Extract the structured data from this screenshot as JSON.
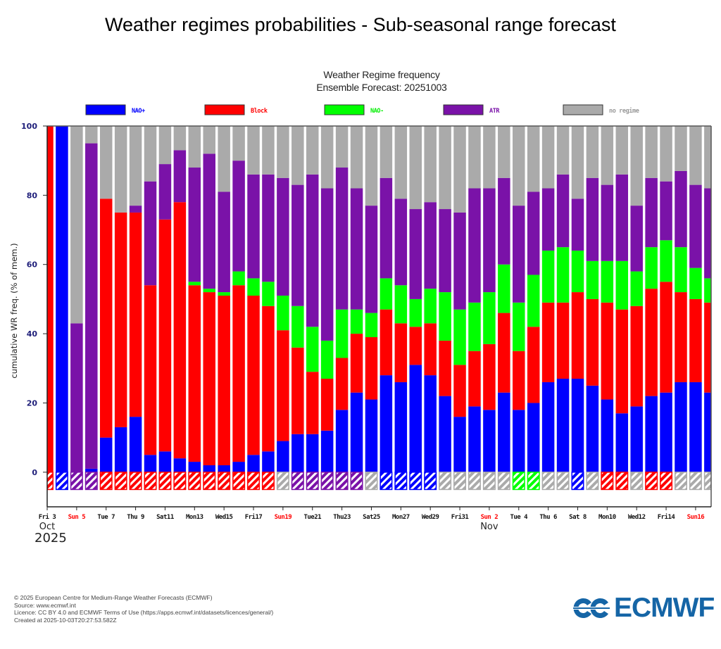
{
  "page": {
    "title": "Weather regimes probabilities - Sub-seasonal range forecast"
  },
  "footer": {
    "copyright": "© 2025 European Centre for Medium-Range Weather Forecasts (ECMWF)",
    "source": "Source: www.ecmwf.int",
    "licence": "Licence: CC BY 4.0 and ECMWF Terms of Use (https://apps.ecmwf.int/datasets/licences/general/)",
    "created": "Created at 2025-10-03T20:27:53.582Z",
    "logo_text": "ECMWF",
    "logo_color": "#1565a6"
  },
  "chart_data": {
    "type": "bar",
    "stacked": true,
    "title": "Weather Regime frequency",
    "subtitle": "Ensemble Forecast: 20251003",
    "xlabel": "",
    "ylabel": "cumulative WR freq. (% of mem.)",
    "ylim": [
      -10,
      100
    ],
    "yticks": [
      0,
      20,
      40,
      60,
      80,
      100
    ],
    "grid": false,
    "legend_position": "top",
    "x_month_labels": [
      {
        "after_day_index": 0,
        "label": "Oct",
        "year": "2025"
      },
      {
        "after_day_index": 30,
        "label": "Nov"
      }
    ],
    "x_tick_labels": [
      {
        "day_index": 0,
        "label": "Fri 3",
        "weekend": false
      },
      {
        "day_index": 2,
        "label": "Sun 5",
        "weekend": true
      },
      {
        "day_index": 4,
        "label": "Tue 7",
        "weekend": false
      },
      {
        "day_index": 6,
        "label": "Thu 9",
        "weekend": false
      },
      {
        "day_index": 8,
        "label": "Sat11",
        "weekend": false
      },
      {
        "day_index": 10,
        "label": "Mon13",
        "weekend": false
      },
      {
        "day_index": 12,
        "label": "Wed15",
        "weekend": false
      },
      {
        "day_index": 14,
        "label": "Fri17",
        "weekend": false
      },
      {
        "day_index": 16,
        "label": "Sun19",
        "weekend": true
      },
      {
        "day_index": 18,
        "label": "Tue21",
        "weekend": false
      },
      {
        "day_index": 20,
        "label": "Thu23",
        "weekend": false
      },
      {
        "day_index": 22,
        "label": "Sat25",
        "weekend": false
      },
      {
        "day_index": 24,
        "label": "Mon27",
        "weekend": false
      },
      {
        "day_index": 26,
        "label": "Wed29",
        "weekend": false
      },
      {
        "day_index": 28,
        "label": "Fri31",
        "weekend": false
      },
      {
        "day_index": 30,
        "label": "Sun 2",
        "weekend": true
      },
      {
        "day_index": 32,
        "label": "Tue 4",
        "weekend": false
      },
      {
        "day_index": 34,
        "label": "Thu 6",
        "weekend": false
      },
      {
        "day_index": 36,
        "label": "Sat 8",
        "weekend": false
      },
      {
        "day_index": 38,
        "label": "Mon10",
        "weekend": false
      },
      {
        "day_index": 40,
        "label": "Wed12",
        "weekend": false
      },
      {
        "day_index": 42,
        "label": "Fri14",
        "weekend": false
      },
      {
        "day_index": 44,
        "label": "Sun16",
        "weekend": true
      }
    ],
    "categories": [
      "2025-10-03",
      "2025-10-04",
      "2025-10-05",
      "2025-10-06",
      "2025-10-07",
      "2025-10-08",
      "2025-10-09",
      "2025-10-10",
      "2025-10-11",
      "2025-10-12",
      "2025-10-13",
      "2025-10-14",
      "2025-10-15",
      "2025-10-16",
      "2025-10-17",
      "2025-10-18",
      "2025-10-19",
      "2025-10-20",
      "2025-10-21",
      "2025-10-22",
      "2025-10-23",
      "2025-10-24",
      "2025-10-25",
      "2025-10-26",
      "2025-10-27",
      "2025-10-28",
      "2025-10-29",
      "2025-10-30",
      "2025-10-31",
      "2025-11-01",
      "2025-11-02",
      "2025-11-03",
      "2025-11-04",
      "2025-11-05",
      "2025-11-06",
      "2025-11-07",
      "2025-11-08",
      "2025-11-09",
      "2025-11-10",
      "2025-11-11",
      "2025-11-12",
      "2025-11-13",
      "2025-11-14",
      "2025-11-15",
      "2025-11-16",
      "2025-11-17"
    ],
    "series": [
      {
        "name": "NAO+",
        "key": "nao_plus",
        "color": "#0000ff",
        "values": [
          0,
          100,
          0,
          1,
          10,
          13,
          16,
          5,
          6,
          4,
          3,
          2,
          2,
          3,
          5,
          6,
          9,
          11,
          11,
          12,
          18,
          23,
          21,
          28,
          26,
          31,
          28,
          22,
          16,
          19,
          18,
          23,
          18,
          20,
          26,
          27,
          27,
          25,
          21,
          17,
          19,
          22,
          23,
          26,
          26,
          23
        ]
      },
      {
        "name": "Block",
        "key": "block",
        "color": "#ff0000",
        "values": [
          100,
          0,
          0,
          0,
          69,
          62,
          59,
          49,
          67,
          74,
          51,
          50,
          49,
          51,
          46,
          42,
          32,
          25,
          18,
          15,
          15,
          17,
          18,
          19,
          17,
          11,
          15,
          16,
          15,
          16,
          19,
          23,
          17,
          22,
          23,
          22,
          25,
          25,
          28,
          30,
          29,
          31,
          32,
          26,
          24,
          26
        ]
      },
      {
        "name": "NAO-",
        "key": "nao_minus",
        "color": "#00ff00",
        "values": [
          0,
          0,
          0,
          0,
          0,
          0,
          0,
          0,
          0,
          0,
          1,
          1,
          1,
          4,
          5,
          7,
          10,
          12,
          13,
          11,
          14,
          7,
          7,
          9,
          11,
          8,
          10,
          14,
          16,
          14,
          15,
          14,
          14,
          15,
          15,
          16,
          12,
          11,
          12,
          14,
          10,
          12,
          12,
          13,
          9,
          7
        ]
      },
      {
        "name": "ATR",
        "key": "atr",
        "color": "#7a12a8",
        "values": [
          0,
          0,
          43,
          94,
          0,
          0,
          2,
          30,
          16,
          15,
          33,
          39,
          29,
          32,
          30,
          31,
          34,
          35,
          44,
          44,
          41,
          35,
          31,
          29,
          25,
          26,
          25,
          24,
          28,
          33,
          30,
          25,
          28,
          24,
          18,
          21,
          15,
          24,
          22,
          25,
          19,
          20,
          17,
          22,
          24,
          26
        ]
      },
      {
        "name": "no regime",
        "key": "no_regime",
        "color": "#aaaaaa",
        "values": [
          0,
          0,
          57,
          5,
          21,
          25,
          23,
          16,
          11,
          7,
          12,
          8,
          19,
          10,
          14,
          14,
          15,
          17,
          14,
          18,
          12,
          18,
          23,
          15,
          21,
          24,
          22,
          24,
          25,
          18,
          18,
          15,
          23,
          19,
          18,
          14,
          21,
          15,
          17,
          14,
          23,
          15,
          16,
          13,
          17,
          18
        ]
      }
    ],
    "dominant_regime_strip": [
      "Block",
      "NAO+",
      "ATR",
      "ATR",
      "Block",
      "Block",
      "Block",
      "Block",
      "Block",
      "Block",
      "Block",
      "Block",
      "Block",
      "Block",
      "Block",
      "Block",
      "no regime",
      "ATR",
      "ATR",
      "ATR",
      "ATR",
      "ATR",
      "no regime",
      "NAO+",
      "NAO+",
      "NAO+",
      "NAO+",
      "no regime",
      "no regime",
      "no regime",
      "no regime",
      "no regime",
      "NAO-",
      "NAO-",
      "no regime",
      "no regime",
      "NAO+",
      "no regime",
      "Block",
      "Block",
      "no regime",
      "Block",
      "Block",
      "no regime",
      "no regime",
      "no regime"
    ],
    "legend_label_colors": {
      "NAO+": "#0000ff",
      "Block": "#ff0000",
      "NAO-": "#00ee00",
      "ATR": "#7a12a8",
      "no regime": "#999999"
    },
    "axis_label_color": "#1f1f7a",
    "weekend_label_color": "#ff0000"
  }
}
